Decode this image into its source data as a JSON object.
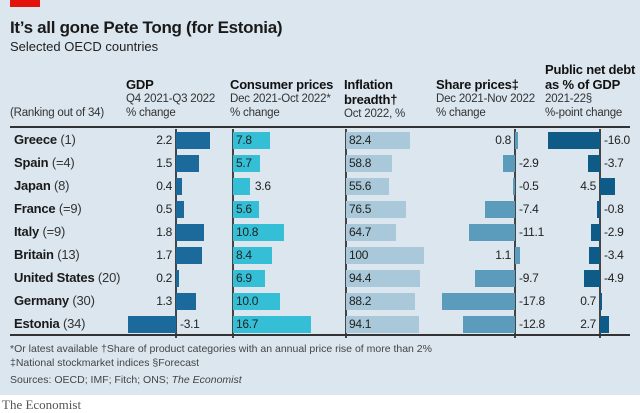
{
  "title": "It’s all gone Pete Tong (for Estonia)",
  "subtitle": "Selected OECD countries",
  "brand": "The Economist",
  "ranking_label": "(Ranking out of 34)",
  "footnotes": {
    "line1": "*Or latest available   †Share of product categories with an annual price rise of more than 2%",
    "line2": "‡National stockmarket indices   §Forecast",
    "sources": "Sources: OECD; IMF; Fitch; ONS; ",
    "sources_italic": "The Economist"
  },
  "colors": {
    "gdp": "#1c6a9c",
    "cpi": "#35bfd6",
    "inflation": "#a9c9da",
    "share": "#5b9cbd",
    "debt": "#0d5b86",
    "accent": "#e3120b",
    "background": "#dbe6ee"
  },
  "chart_data": {
    "type": "table",
    "columns": [
      {
        "key": "gdp",
        "title": "GDP",
        "sub1": "Q4 2021-Q3 2022",
        "sub2": "% change"
      },
      {
        "key": "cpi",
        "title": "Consumer prices",
        "sub1": "Dec 2021-Oct 2022*",
        "sub2": "% change"
      },
      {
        "key": "inflation",
        "title": "Inflation",
        "title2": "breadth†",
        "sub1": "Oct 2022, %"
      },
      {
        "key": "share",
        "title": "Share prices‡",
        "sub1": "Dec 2021-Nov 2022",
        "sub2": "% change"
      },
      {
        "key": "debt",
        "title": "Public net debt",
        "title2": "as % of GDP",
        "sub1": "2021-22§",
        "sub2": "%-point change"
      }
    ],
    "rows": [
      {
        "country": "Greece",
        "rank": "(1)",
        "gdp": "2.2",
        "cpi": "7.8",
        "inflation": "82.4",
        "share": "0.8",
        "debt": "-16.0"
      },
      {
        "country": "Spain",
        "rank": "(=4)",
        "gdp": "1.5",
        "cpi": "5.7",
        "inflation": "58.8",
        "share": "-2.9",
        "debt": "-3.7"
      },
      {
        "country": "Japan",
        "rank": "(8)",
        "gdp": "0.4",
        "cpi": "3.6",
        "inflation": "55.6",
        "share": "-0.5",
        "debt": "4.5"
      },
      {
        "country": "France",
        "rank": "(=9)",
        "gdp": "0.5",
        "cpi": "5.6",
        "inflation": "76.5",
        "share": "-7.4",
        "debt": "-0.8"
      },
      {
        "country": "Italy",
        "rank": "(=9)",
        "gdp": "1.8",
        "cpi": "10.8",
        "inflation": "64.7",
        "share": "-11.1",
        "debt": "-2.9"
      },
      {
        "country": "Britain",
        "rank": "(13)",
        "gdp": "1.7",
        "cpi": "8.4",
        "inflation": "100",
        "share": "1.1",
        "debt": "-3.4"
      },
      {
        "country": "United States",
        "rank": "(20)",
        "gdp": "0.2",
        "cpi": "6.9",
        "inflation": "94.4",
        "share": "-9.7",
        "debt": "-4.9"
      },
      {
        "country": "Germany",
        "rank": "(30)",
        "gdp": "1.3",
        "cpi": "10.0",
        "inflation": "88.2",
        "share": "-17.8",
        "debt": "0.7"
      },
      {
        "country": "Estonia",
        "rank": "(34)",
        "gdp": "-3.1",
        "cpi": "16.7",
        "inflation": "94.1",
        "share": "-12.8",
        "debt": "2.7"
      }
    ]
  }
}
